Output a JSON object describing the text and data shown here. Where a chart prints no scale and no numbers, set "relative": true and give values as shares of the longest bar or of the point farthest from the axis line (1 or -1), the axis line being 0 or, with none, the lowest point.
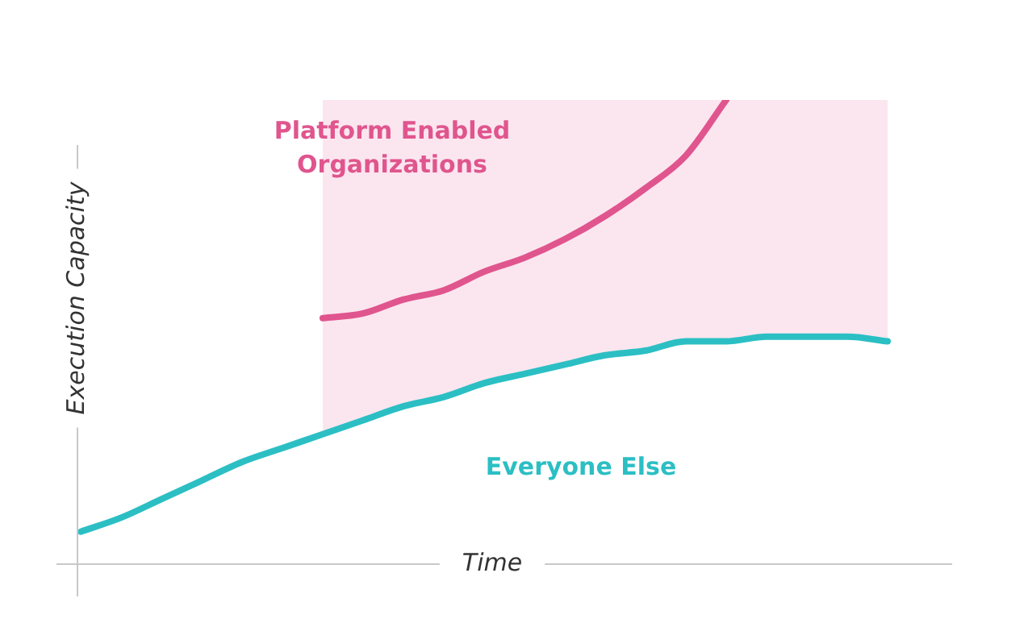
{
  "chart_data": {
    "type": "line",
    "relative": true,
    "xlabel": "Time",
    "ylabel": "Execution Capacity",
    "legend": false,
    "marker": "none",
    "categories": [
      null,
      null,
      null,
      null,
      null,
      null,
      null,
      null,
      null,
      null,
      null,
      null,
      null,
      null,
      null,
      null,
      null,
      null,
      null,
      null,
      null
    ],
    "series": [
      {
        "name": "Platform Enabled Organizations",
        "color": "#e0558e",
        "values": [
          null,
          null,
          null,
          null,
          null,
          null,
          0.53,
          0.54,
          0.57,
          0.59,
          0.63,
          0.66,
          0.7,
          0.75,
          0.81,
          0.88,
          1,
          null,
          null,
          null,
          null
        ]
      },
      {
        "name": "Everyone Else",
        "color": "#2bbfc4",
        "values": [
          0.07,
          0.1,
          0.14,
          0.18,
          0.22,
          0.25,
          0.28,
          0.31,
          0.34,
          0.36,
          0.39,
          0.41,
          0.43,
          0.45,
          0.46,
          0.48,
          0.48,
          0.49,
          0.49,
          0.49,
          0.48
        ]
      },
      {
        "type": "area",
        "color": "#f9dbe8",
        "values": [
          null,
          null,
          null,
          null,
          null,
          null,
          1,
          1,
          1,
          1,
          1,
          1,
          1,
          1,
          1,
          1,
          1,
          1,
          1,
          1,
          1
        ]
      }
    ]
  }
}
